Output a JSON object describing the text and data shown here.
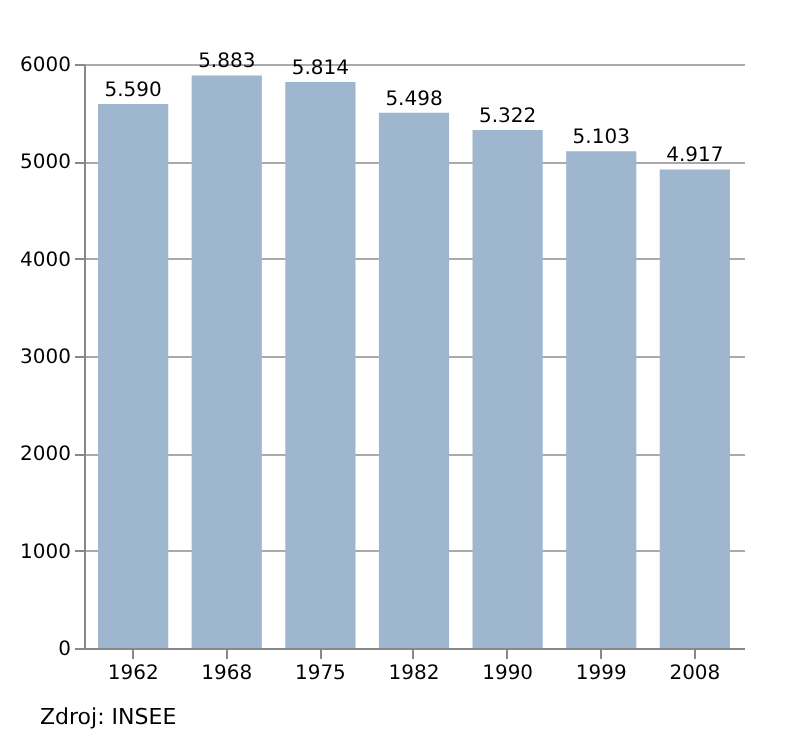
{
  "chart_data": {
    "type": "bar",
    "categories": [
      "1962",
      "1968",
      "1975",
      "1982",
      "1990",
      "1999",
      "2008"
    ],
    "values": [
      5590,
      5883,
      5814,
      5498,
      5322,
      5103,
      4917
    ],
    "value_labels": [
      "5.590",
      "5.883",
      "5.814",
      "5.498",
      "5.322",
      "5.103",
      "4.917"
    ],
    "color": "#9fb6cf",
    "ylim": [
      0,
      6000
    ],
    "yticks": [
      0,
      1000,
      2000,
      3000,
      4000,
      5000,
      6000
    ],
    "grid": "y",
    "annotations": [
      "Zdroj: INSEE"
    ]
  }
}
